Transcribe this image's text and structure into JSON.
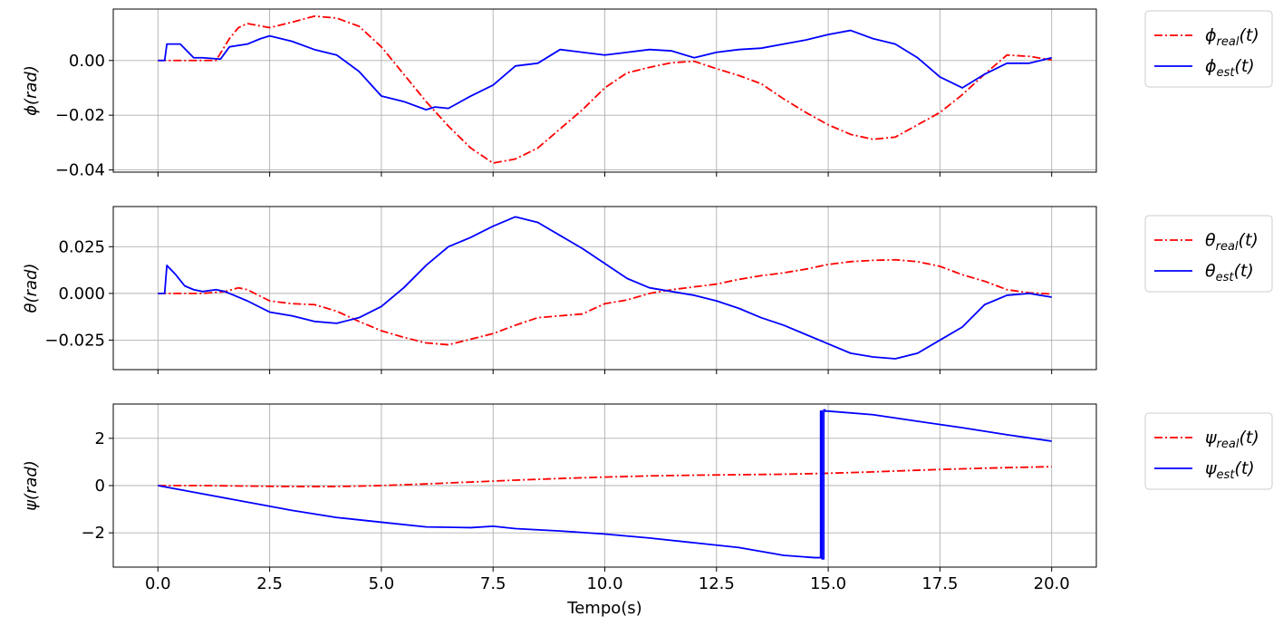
{
  "chart_data": {
    "type": "line",
    "xlabel": "Tempo(s)",
    "xlim": [
      -1.0,
      21.0
    ],
    "xticks": [
      0.0,
      2.5,
      5.0,
      7.5,
      10.0,
      12.5,
      15.0,
      17.5,
      20.0
    ],
    "xtick_labels": [
      "0.0",
      "2.5",
      "5.0",
      "7.5",
      "10.0",
      "12.5",
      "15.0",
      "17.5",
      "20.0"
    ],
    "legend_placement": "outside-right",
    "grid": true,
    "colors": {
      "real": "#ff0000",
      "est": "#0000ff"
    },
    "panels": [
      {
        "id": "phi",
        "ylabel_sym": "ϕ",
        "ylabel_rest": "(rad)",
        "ylim": [
          -0.0408,
          0.0188
        ],
        "yticks": [
          0.0,
          -0.02,
          -0.04
        ],
        "ytick_labels": [
          "0.00",
          "−0.02",
          "−0.04"
        ],
        "series": [
          {
            "name_sym": "ϕ",
            "name_sub": "real",
            "name_suffix": "(t)",
            "style": "dashdot",
            "color": "#ff0000",
            "x": [
              0,
              1.3,
              1.6,
              1.8,
              2.0,
              2.5,
              3.0,
              3.5,
              4.0,
              4.5,
              5.0,
              5.5,
              6.0,
              6.5,
              7.0,
              7.5,
              8.0,
              8.5,
              9.0,
              9.5,
              10.0,
              10.5,
              11.0,
              11.5,
              12.0,
              12.5,
              13.0,
              13.5,
              14.0,
              14.5,
              15.0,
              15.5,
              16.0,
              16.5,
              17.0,
              17.5,
              18.0,
              18.5,
              19.0,
              19.5,
              20.0
            ],
            "y": [
              0,
              0,
              0.008,
              0.012,
              0.0135,
              0.012,
              0.014,
              0.0162,
              0.0155,
              0.0125,
              0.005,
              -0.005,
              -0.015,
              -0.024,
              -0.032,
              -0.0375,
              -0.036,
              -0.032,
              -0.025,
              -0.018,
              -0.01,
              -0.0045,
              -0.0025,
              -0.0008,
              -0.0003,
              -0.003,
              -0.0055,
              -0.0085,
              -0.014,
              -0.019,
              -0.0235,
              -0.027,
              -0.0288,
              -0.028,
              -0.0235,
              -0.019,
              -0.0125,
              -0.005,
              0.002,
              0.0015,
              0.0002
            ]
          },
          {
            "name_sym": "ϕ",
            "name_sub": "est",
            "name_suffix": "(t)",
            "style": "solid",
            "color": "#0000ff",
            "x": [
              0,
              0.15,
              0.2,
              0.5,
              0.8,
              1.0,
              1.4,
              1.6,
              2.0,
              2.3,
              2.5,
              3.0,
              3.5,
              4.0,
              4.5,
              5.0,
              5.5,
              6.0,
              6.2,
              6.5,
              7.0,
              7.5,
              8.0,
              8.5,
              9.0,
              9.5,
              10.0,
              10.5,
              11.0,
              11.5,
              12.0,
              12.5,
              13.0,
              13.5,
              14.0,
              14.5,
              15.0,
              15.5,
              16.0,
              16.5,
              17.0,
              17.5,
              18.0,
              18.5,
              19.0,
              19.5,
              20.0
            ],
            "y": [
              0,
              0,
              0.006,
              0.006,
              0.001,
              0.001,
              0.0005,
              0.005,
              0.006,
              0.008,
              0.009,
              0.007,
              0.004,
              0.002,
              -0.004,
              -0.013,
              -0.015,
              -0.018,
              -0.017,
              -0.0175,
              -0.013,
              -0.009,
              -0.002,
              -0.001,
              0.004,
              0.003,
              0.002,
              0.003,
              0.004,
              0.0035,
              0.001,
              0.003,
              0.004,
              0.0045,
              0.006,
              0.0075,
              0.0095,
              0.011,
              0.008,
              0.006,
              0.001,
              -0.006,
              -0.01,
              -0.005,
              -0.001,
              -0.001,
              0.001
            ]
          }
        ]
      },
      {
        "id": "theta",
        "ylabel_sym": "θ",
        "ylabel_rest": "(rad)",
        "ylim": [
          -0.0408,
          0.0465
        ],
        "yticks": [
          0.025,
          0.0,
          -0.025
        ],
        "ytick_labels": [
          "0.025",
          "0.000",
          "−0.025"
        ],
        "series": [
          {
            "name_sym": "θ",
            "name_sub": "real",
            "name_suffix": "(t)",
            "style": "dashdot",
            "color": "#ff0000",
            "x": [
              0,
              0.5,
              1.0,
              1.5,
              1.8,
              2.0,
              2.5,
              3.0,
              3.5,
              4.0,
              4.5,
              5.0,
              5.5,
              6.0,
              6.5,
              7.0,
              7.5,
              8.0,
              8.5,
              9.0,
              9.5,
              10.0,
              10.5,
              11.0,
              11.5,
              12.0,
              12.5,
              13.0,
              13.5,
              14.0,
              14.5,
              15.0,
              15.5,
              16.0,
              16.5,
              17.0,
              17.5,
              18.0,
              18.5,
              19.0,
              19.5,
              20.0
            ],
            "y": [
              0,
              0,
              0,
              0.001,
              0.003,
              0.002,
              -0.004,
              -0.0055,
              -0.006,
              -0.0095,
              -0.015,
              -0.02,
              -0.0235,
              -0.0265,
              -0.0275,
              -0.0245,
              -0.0215,
              -0.017,
              -0.013,
              -0.012,
              -0.011,
              -0.0055,
              -0.0035,
              0.0,
              0.002,
              0.0035,
              0.005,
              0.0075,
              0.0095,
              0.011,
              0.013,
              0.0155,
              0.017,
              0.0177,
              0.018,
              0.017,
              0.0145,
              0.01,
              0.0065,
              0.002,
              0.0003,
              -0.0003
            ]
          },
          {
            "name_sym": "θ",
            "name_sub": "est",
            "name_suffix": "(t)",
            "style": "solid",
            "color": "#0000ff",
            "x": [
              0,
              0.15,
              0.2,
              0.4,
              0.6,
              0.8,
              1.0,
              1.3,
              1.5,
              2.0,
              2.5,
              3.0,
              3.5,
              4.0,
              4.5,
              5.0,
              5.5,
              6.0,
              6.5,
              7.0,
              7.5,
              7.8,
              8.0,
              8.5,
              9.0,
              9.5,
              10.0,
              10.5,
              11.0,
              11.5,
              12.0,
              12.5,
              13.0,
              13.5,
              14.0,
              14.5,
              15.0,
              15.5,
              16.0,
              16.5,
              17.0,
              17.5,
              18.0,
              18.5,
              19.0,
              19.5,
              20.0
            ],
            "y": [
              0,
              0,
              0.015,
              0.01,
              0.004,
              0.002,
              0.001,
              0.002,
              0.001,
              -0.004,
              -0.01,
              -0.012,
              -0.015,
              -0.016,
              -0.013,
              -0.007,
              0.003,
              0.015,
              0.025,
              0.03,
              0.036,
              0.039,
              0.041,
              0.038,
              0.031,
              0.024,
              0.016,
              0.008,
              0.003,
              0.001,
              -0.001,
              -0.004,
              -0.008,
              -0.013,
              -0.017,
              -0.022,
              -0.027,
              -0.032,
              -0.034,
              -0.035,
              -0.032,
              -0.025,
              -0.018,
              -0.006,
              -0.001,
              0.0,
              -0.002
            ]
          }
        ]
      },
      {
        "id": "psi",
        "ylabel_sym": "ψ",
        "ylabel_rest": "(rad)",
        "ylim": [
          -3.45,
          3.45
        ],
        "yticks": [
          2,
          0,
          -2
        ],
        "ytick_labels": [
          "2",
          "0",
          "−2"
        ],
        "series": [
          {
            "name_sym": "ψ",
            "name_sub": "real",
            "name_suffix": "(t)",
            "style": "dashdot",
            "color": "#ff0000",
            "x": [
              0,
              1,
              2,
              3,
              4,
              5,
              6,
              7,
              8,
              9,
              10,
              11,
              12,
              13,
              14,
              15,
              16,
              17,
              18,
              19,
              20
            ],
            "y": [
              0,
              0.0,
              -0.02,
              -0.04,
              -0.04,
              0.0,
              0.07,
              0.15,
              0.23,
              0.3,
              0.36,
              0.41,
              0.44,
              0.46,
              0.48,
              0.52,
              0.58,
              0.65,
              0.71,
              0.76,
              0.8
            ]
          },
          {
            "name_sym": "ψ",
            "name_sub": "est",
            "name_suffix": "(t)",
            "style": "solid",
            "color": "#0000ff",
            "x": [
              0,
              1,
              2,
              3,
              4,
              5,
              6,
              7,
              7.5,
              8,
              9,
              10,
              11,
              12,
              13,
              14,
              14.7,
              14.83,
              14.83,
              14.86,
              14.86,
              14.9,
              14.9,
              14.93,
              14.93,
              15.0,
              16,
              17,
              18,
              19,
              20
            ],
            "y": [
              0,
              -0.35,
              -0.7,
              -1.05,
              -1.35,
              -1.55,
              -1.75,
              -1.78,
              -1.72,
              -1.82,
              -1.92,
              -2.05,
              -2.22,
              -2.42,
              -2.62,
              -2.95,
              -3.05,
              -3.05,
              3.15,
              3.15,
              -3.1,
              -3.1,
              3.2,
              3.2,
              3.15,
              3.15,
              3.0,
              2.72,
              2.45,
              2.15,
              1.88
            ]
          }
        ]
      }
    ]
  }
}
